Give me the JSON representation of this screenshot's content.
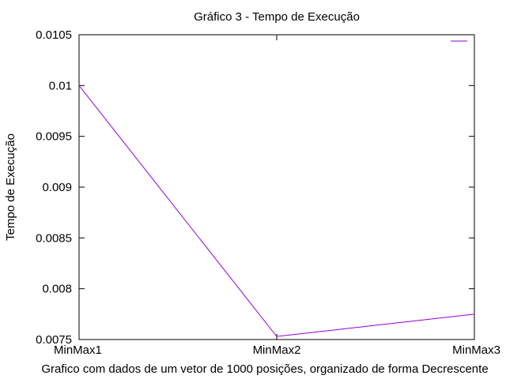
{
  "chart_data": {
    "type": "line",
    "title": "Gráfico 3 - Tempo de Execução",
    "xlabel": "Grafico com dados de um vetor de 1000 posições, organizado de forma Decrescente",
    "ylabel": "Tempo de Execução",
    "categories": [
      "MinMax1",
      "MinMax2",
      "MinMax3"
    ],
    "ylim": [
      0.0075,
      0.0105
    ],
    "yticks": [
      "0.0075",
      "0.008",
      "0.0085",
      "0.009",
      "0.0095",
      "0.01",
      "0.0105"
    ],
    "series": [
      {
        "values": [
          0.01,
          0.00753,
          0.00775
        ],
        "color": "#9400d3"
      }
    ],
    "grid": false,
    "legend": {
      "position": "top-right",
      "entries": [
        ""
      ]
    }
  }
}
